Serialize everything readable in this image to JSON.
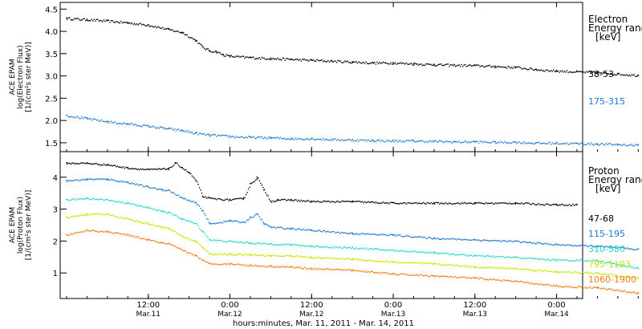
{
  "chart_data": [
    {
      "id": "electron",
      "type": "scatter",
      "ylabel_lines": [
        "ACE EPAM",
        "log(Electron Flux)",
        "[1/(cm²s ster MeV)]"
      ],
      "ylim": [
        1.3,
        4.65
      ],
      "yticks": [
        1.5,
        2.0,
        2.5,
        3.0,
        3.5,
        4.0,
        4.5
      ],
      "ytick_labels": [
        "1.5",
        "2.0",
        "2.5",
        "3.0",
        "3.5",
        "4.0",
        "4.5"
      ],
      "xlim_hours": [
        0,
        84
      ],
      "legend_title_lines": [
        "Electron",
        "Energy range",
        "[keV]"
      ],
      "series": [
        {
          "name": "38-53",
          "color": "#000000",
          "x": [
            0,
            3,
            6,
            9,
            12,
            15,
            17,
            19,
            20,
            21,
            22,
            23,
            24,
            27,
            30,
            33,
            36,
            39,
            42,
            45,
            48,
            51,
            54,
            57,
            60,
            63,
            66,
            69,
            72,
            75,
            78,
            81,
            84
          ],
          "y": [
            4.3,
            4.27,
            4.24,
            4.2,
            4.15,
            4.05,
            3.98,
            3.8,
            3.65,
            3.57,
            3.55,
            3.48,
            3.45,
            3.42,
            3.4,
            3.38,
            3.36,
            3.34,
            3.32,
            3.3,
            3.3,
            3.28,
            3.26,
            3.25,
            3.24,
            3.22,
            3.2,
            3.15,
            3.12,
            3.1,
            3.08,
            3.05,
            3.02
          ]
        },
        {
          "name": "175-315",
          "color": "#1e78d2",
          "x": [
            0,
            3,
            6,
            9,
            12,
            15,
            17,
            19,
            21,
            24,
            27,
            30,
            33,
            36,
            39,
            42,
            45,
            48,
            51,
            54,
            57,
            60,
            63,
            66,
            69,
            72,
            75,
            78,
            81,
            84
          ],
          "y": [
            2.12,
            2.05,
            1.98,
            1.93,
            1.88,
            1.82,
            1.78,
            1.72,
            1.68,
            1.65,
            1.63,
            1.62,
            1.6,
            1.6,
            1.58,
            1.57,
            1.56,
            1.55,
            1.55,
            1.54,
            1.53,
            1.53,
            1.52,
            1.52,
            1.5,
            1.5,
            1.49,
            1.48,
            1.47,
            1.45
          ]
        }
      ]
    },
    {
      "id": "proton",
      "type": "scatter",
      "ylabel_lines": [
        "ACE EPAM",
        "log(Proton Flux)",
        "[1/(cm²s ster MeV)]"
      ],
      "ylim": [
        0.2,
        4.8
      ],
      "yticks": [
        1,
        2,
        3,
        4
      ],
      "ytick_labels": [
        "1",
        "2",
        "3",
        "4"
      ],
      "xlim_hours": [
        0,
        84
      ],
      "xticks_hours": [
        12,
        24,
        36,
        48,
        60,
        72
      ],
      "xtick_labels": [
        [
          "12:00",
          "Mar.11"
        ],
        [
          "0:00",
          "Mar.12"
        ],
        [
          "12:00",
          "Mar.12"
        ],
        [
          "0:00",
          "Mar.13"
        ],
        [
          "12:00",
          "Mar.13"
        ],
        [
          "0:00",
          "Mar.14"
        ]
      ],
      "xlabel": "hours:minutes, Mar. 11, 2011 - Mar. 14, 2011",
      "legend_title_lines": [
        "Proton",
        "Energy range",
        "[keV]"
      ],
      "series": [
        {
          "name": "47-68",
          "color": "#000000",
          "x": [
            0,
            3,
            6,
            9,
            12,
            15,
            16,
            17,
            18,
            19,
            20,
            21,
            24,
            26,
            27,
            28,
            29,
            30,
            31,
            33,
            36,
            42,
            48,
            54,
            60,
            66,
            72,
            75
          ],
          "y": [
            4.45,
            4.45,
            4.4,
            4.3,
            4.25,
            4.28,
            4.45,
            4.3,
            4.15,
            3.9,
            3.4,
            3.35,
            3.3,
            3.35,
            3.8,
            4.0,
            3.6,
            3.25,
            3.3,
            3.3,
            3.25,
            3.25,
            3.2,
            3.2,
            3.2,
            3.2,
            3.15,
            3.15
          ]
        },
        {
          "name": "115-195",
          "color": "#1e78d2",
          "x": [
            0,
            3,
            6,
            9,
            12,
            14,
            15,
            17,
            19,
            20,
            21,
            24,
            26,
            27,
            28,
            29,
            30,
            33,
            36,
            42,
            48,
            54,
            60,
            66,
            72,
            78,
            84
          ],
          "y": [
            3.9,
            3.95,
            3.95,
            3.85,
            3.7,
            3.62,
            3.6,
            3.35,
            3.2,
            2.95,
            2.55,
            2.65,
            2.6,
            2.75,
            2.85,
            2.55,
            2.45,
            2.4,
            2.35,
            2.25,
            2.2,
            2.1,
            2.05,
            2.0,
            1.9,
            1.85,
            1.75
          ]
        },
        {
          "name": "310-580",
          "color": "#22d8c8",
          "x": [
            0,
            3,
            6,
            9,
            12,
            14,
            15,
            17,
            19,
            20,
            21,
            24,
            27,
            30,
            33,
            36,
            42,
            48,
            54,
            60,
            66,
            72,
            78,
            84
          ],
          "y": [
            3.3,
            3.35,
            3.3,
            3.2,
            3.05,
            2.95,
            2.9,
            2.7,
            2.55,
            2.3,
            2.05,
            2.0,
            1.95,
            1.92,
            1.9,
            1.85,
            1.8,
            1.72,
            1.65,
            1.55,
            1.5,
            1.42,
            1.4,
            1.15
          ]
        },
        {
          "name": "795-1193",
          "color": "#c8e600",
          "x": [
            0,
            3,
            6,
            9,
            12,
            14,
            15,
            17,
            19,
            20,
            21,
            24,
            27,
            30,
            33,
            36,
            42,
            48,
            54,
            60,
            66,
            72,
            78,
            84
          ],
          "y": [
            2.75,
            2.85,
            2.85,
            2.7,
            2.55,
            2.45,
            2.4,
            2.15,
            2.0,
            1.8,
            1.6,
            1.6,
            1.58,
            1.55,
            1.55,
            1.5,
            1.45,
            1.35,
            1.3,
            1.2,
            1.15,
            1.05,
            1.0,
            0.85
          ]
        },
        {
          "name": "1060-1900",
          "color": "#f07d14",
          "x": [
            0,
            3,
            6,
            9,
            12,
            14,
            15,
            17,
            19,
            20,
            21,
            24,
            27,
            30,
            33,
            36,
            42,
            48,
            54,
            60,
            66,
            72,
            78,
            84
          ],
          "y": [
            2.2,
            2.35,
            2.3,
            2.2,
            2.05,
            1.95,
            1.92,
            1.72,
            1.55,
            1.4,
            1.3,
            1.3,
            1.25,
            1.22,
            1.2,
            1.15,
            1.1,
            0.98,
            0.92,
            0.85,
            0.75,
            0.6,
            0.55,
            0.38
          ]
        }
      ]
    }
  ]
}
